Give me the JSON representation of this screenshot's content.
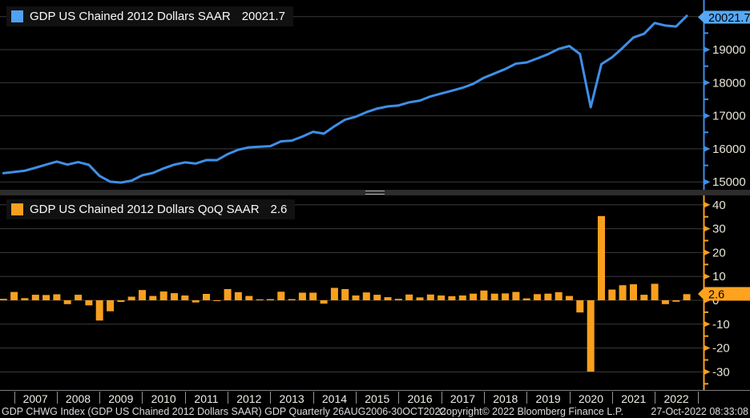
{
  "top_panel": {
    "legend_label": "GDP US Chained 2012 Dollars SAAR",
    "legend_value": "20021.7",
    "swatch_color": "#4FA1F2",
    "axis_color": "#3F8FE8",
    "tag_color": "#55A8F8"
  },
  "bottom_panel": {
    "legend_label": "GDP US Chained 2012 Dollars QoQ SAAR",
    "legend_value": "2.6",
    "swatch_color": "#F8A01E",
    "axis_color": "#F8A01E",
    "tag_color": "#FFA21E"
  },
  "xaxis": {
    "years": [
      "2007",
      "2008",
      "2009",
      "2010",
      "2011",
      "2012",
      "2013",
      "2014",
      "2015",
      "2016",
      "2017",
      "2018",
      "2019",
      "2020",
      "2021",
      "2022"
    ]
  },
  "status": {
    "left": "GDP CHWG Index (GDP US Chained 2012 Dollars SAAR) GDP  Quarterly 26AUG2006-30OCT2022",
    "center": "Copyright© 2022 Bloomberg Finance L.P.",
    "right": "27-Oct-2022 08:33:08"
  },
  "chart_data": [
    {
      "type": "line",
      "series_name": "GDP US Chained 2012 Dollars SAAR",
      "last_label": "20021.7",
      "color": "#3F8FE8",
      "frequency": "quarterly",
      "x_start": "2006 Q3",
      "x_end": "2022 Q3",
      "ylim": [
        14750,
        20500
      ],
      "y_major_ticks": [
        20000,
        19000,
        18000,
        17000,
        16000,
        15000
      ],
      "y_minor_ticks": [
        19500,
        18500,
        17500,
        16500,
        15500
      ],
      "grid": true,
      "legend_position": "top-left",
      "values": [
        15267,
        15303,
        15340,
        15429,
        15522,
        15614,
        15523,
        15600,
        15517,
        15181,
        15007,
        14981,
        15038,
        15201,
        15270,
        15409,
        15522,
        15592,
        15555,
        15662,
        15659,
        15839,
        15974,
        16047,
        16064,
        16083,
        16228,
        16250,
        16374,
        16516,
        16460,
        16684,
        16884,
        16972,
        17108,
        17217,
        17284,
        17312,
        17407,
        17460,
        17585,
        17674,
        17757,
        17847,
        17967,
        18149,
        18280,
        18414,
        18576,
        18612,
        18733,
        18862,
        19021,
        19108,
        18867,
        17258,
        18561,
        18768,
        19056,
        19368,
        19479,
        19806,
        19728,
        19700,
        20021.7
      ]
    },
    {
      "type": "bar",
      "series_name": "GDP US Chained 2012 Dollars QoQ SAAR",
      "last_label": "2.6",
      "color": "#F8A01E",
      "frequency": "quarterly",
      "x_start": "2006 Q3",
      "x_end": "2022 Q3",
      "ylim": [
        -36,
        44
      ],
      "y_major_ticks": [
        40,
        30,
        20,
        10,
        0,
        -10,
        -20,
        -30
      ],
      "y_minor_ticks": [
        35,
        25,
        15,
        5,
        -5,
        -15,
        -25,
        -35
      ],
      "grid": true,
      "legend_position": "top-left",
      "values": [
        0.6,
        3.5,
        0.9,
        2.3,
        2.2,
        2.5,
        -1.6,
        2.3,
        -2.1,
        -8.5,
        -4.6,
        -0.7,
        1.5,
        4.3,
        1.8,
        3.7,
        3.0,
        2.0,
        -0.9,
        2.7,
        -0.1,
        4.7,
        3.4,
        1.8,
        0.4,
        0.5,
        3.6,
        0.5,
        3.2,
        3.2,
        -1.4,
        5.2,
        4.7,
        2.0,
        3.3,
        2.3,
        1.3,
        0.6,
        2.4,
        1.2,
        2.4,
        2.0,
        1.7,
        2.0,
        2.8,
        4.1,
        2.8,
        2.9,
        3.5,
        0.8,
        2.6,
        2.8,
        3.4,
        1.8,
        -5.1,
        -29.9,
        35.3,
        4.5,
        6.3,
        6.7,
        2.3,
        6.9,
        -1.6,
        -0.6,
        2.6
      ]
    }
  ]
}
